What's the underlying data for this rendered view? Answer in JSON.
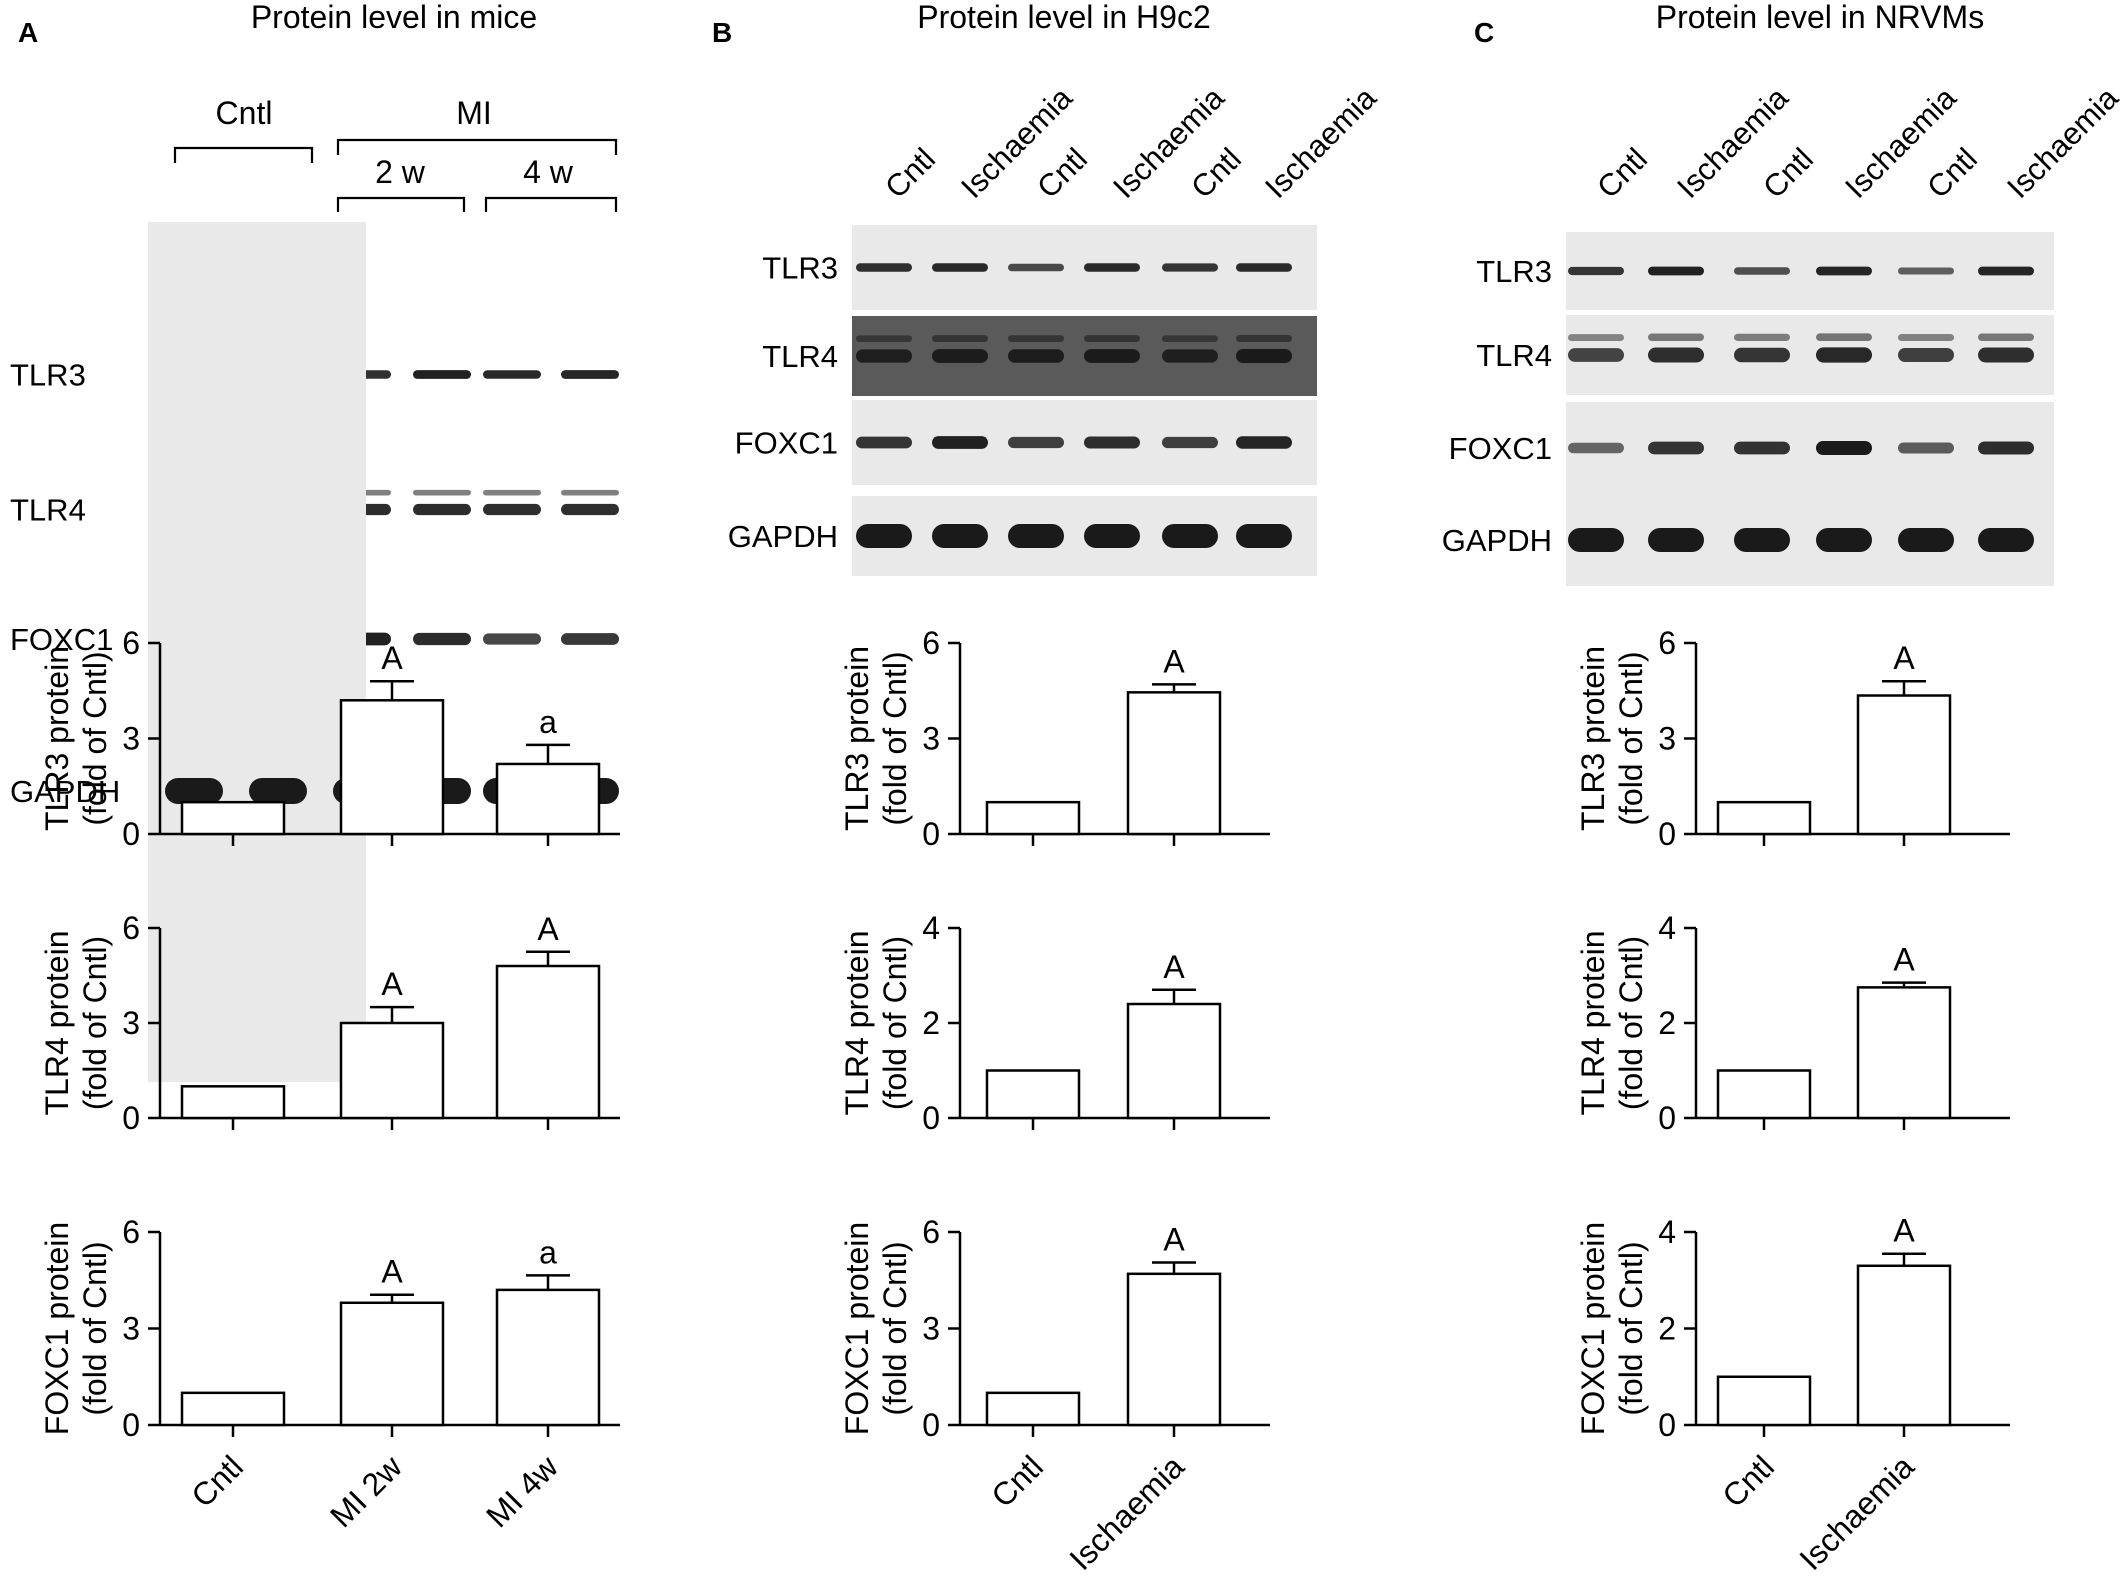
{
  "panels": [
    {
      "letter": "A",
      "title": "Protein level in mice",
      "blot": {
        "groups": [
          "Cntl",
          "MI"
        ],
        "subgroups": [
          "2 w",
          "4 w"
        ],
        "rows": [
          "TLR3",
          "TLR4",
          "FOXC1",
          "GAPDH"
        ]
      }
    },
    {
      "letter": "B",
      "title": "Protein level in H9c2",
      "blot": {
        "lanes": [
          "Cntl",
          "Ischaemia",
          "Cntl",
          "Ischaemia",
          "Cntl",
          "Ischaemia"
        ],
        "rows": [
          "TLR3",
          "TLR4",
          "FOXC1",
          "GAPDH"
        ]
      }
    },
    {
      "letter": "C",
      "title": "Protein level in NRVMs",
      "blot": {
        "lanes": [
          "Cntl",
          "Ischaemia",
          "Cntl",
          "Ischaemia",
          "Cntl",
          "Ischaemia"
        ],
        "rows": [
          "TLR3",
          "TLR4",
          "FOXC1",
          "GAPDH"
        ]
      }
    }
  ],
  "chart_data": [
    {
      "type": "bar",
      "panel": "A",
      "categories": [
        "Cntl",
        "MI 2w",
        "MI 4w"
      ],
      "values": [
        1.0,
        4.2,
        2.2
      ],
      "errors": [
        0,
        0.6,
        0.6
      ],
      "annotations": [
        "",
        "A",
        "a"
      ],
      "ylabel": "TLR3 protein\n(fold of Cntl)",
      "ylim": [
        0,
        6
      ],
      "yticks": [
        0,
        3,
        6
      ]
    },
    {
      "type": "bar",
      "panel": "A",
      "categories": [
        "Cntl",
        "MI 2w",
        "MI 4w"
      ],
      "values": [
        1.0,
        3.0,
        4.8
      ],
      "errors": [
        0,
        0.5,
        0.45
      ],
      "annotations": [
        "",
        "A",
        "A"
      ],
      "ylabel": "TLR4 protein\n(fold of Cntl)",
      "ylim": [
        0,
        6
      ],
      "yticks": [
        0,
        3,
        6
      ]
    },
    {
      "type": "bar",
      "panel": "A",
      "categories": [
        "Cntl",
        "MI 2w",
        "MI 4w"
      ],
      "values": [
        1.0,
        3.8,
        4.2
      ],
      "errors": [
        0,
        0.25,
        0.45
      ],
      "annotations": [
        "",
        "A",
        "a"
      ],
      "ylabel": "FOXC1 protein\n(fold of Cntl)",
      "ylim": [
        0,
        6
      ],
      "yticks": [
        0,
        3,
        6
      ]
    },
    {
      "type": "bar",
      "panel": "B",
      "categories": [
        "Cntl",
        "Ischaemia"
      ],
      "values": [
        1.0,
        4.45
      ],
      "errors": [
        0,
        0.25
      ],
      "annotations": [
        "",
        "A"
      ],
      "ylabel": "TLR3 protein\n(fold of Cntl)",
      "ylim": [
        0,
        6
      ],
      "yticks": [
        0,
        3,
        6
      ]
    },
    {
      "type": "bar",
      "panel": "B",
      "categories": [
        "Cntl",
        "Ischaemia"
      ],
      "values": [
        1.0,
        2.4
      ],
      "errors": [
        0,
        0.3
      ],
      "annotations": [
        "",
        "A"
      ],
      "ylabel": "TLR4 protein\n(fold of Cntl)",
      "ylim": [
        0,
        4
      ],
      "yticks": [
        0,
        2,
        4
      ]
    },
    {
      "type": "bar",
      "panel": "B",
      "categories": [
        "Cntl",
        "Ischaemia"
      ],
      "values": [
        1.0,
        4.7
      ],
      "errors": [
        0,
        0.35
      ],
      "annotations": [
        "",
        "A"
      ],
      "ylabel": "FOXC1 protein\n(fold of Cntl)",
      "ylim": [
        0,
        6
      ],
      "yticks": [
        0,
        3,
        6
      ]
    },
    {
      "type": "bar",
      "panel": "C",
      "categories": [
        "Cntl",
        "Ischaemia"
      ],
      "values": [
        1.0,
        4.35
      ],
      "errors": [
        0,
        0.45
      ],
      "annotations": [
        "",
        "A"
      ],
      "ylabel": "TLR3 protein\n(fold of Cntl)",
      "ylim": [
        0,
        6
      ],
      "yticks": [
        0,
        3,
        6
      ]
    },
    {
      "type": "bar",
      "panel": "C",
      "categories": [
        "Cntl",
        "Ischaemia"
      ],
      "values": [
        1.0,
        2.75
      ],
      "errors": [
        0,
        0.1
      ],
      "annotations": [
        "",
        "A"
      ],
      "ylabel": "TLR4 protein\n(fold of Cntl)",
      "ylim": [
        0,
        4
      ],
      "yticks": [
        0,
        2,
        4
      ]
    },
    {
      "type": "bar",
      "panel": "C",
      "categories": [
        "Cntl",
        "Ischaemia"
      ],
      "values": [
        1.0,
        3.3
      ],
      "errors": [
        0,
        0.25
      ],
      "annotations": [
        "",
        "A"
      ],
      "ylabel": "FOXC1 protein\n(fold of Cntl)",
      "ylim": [
        0,
        4
      ],
      "yticks": [
        0,
        2,
        4
      ]
    }
  ],
  "colors": {
    "ink": "#000000",
    "bar_fill": "#ffffff",
    "blot_background": "#e9e9e9",
    "band": "#1a1a1a"
  }
}
